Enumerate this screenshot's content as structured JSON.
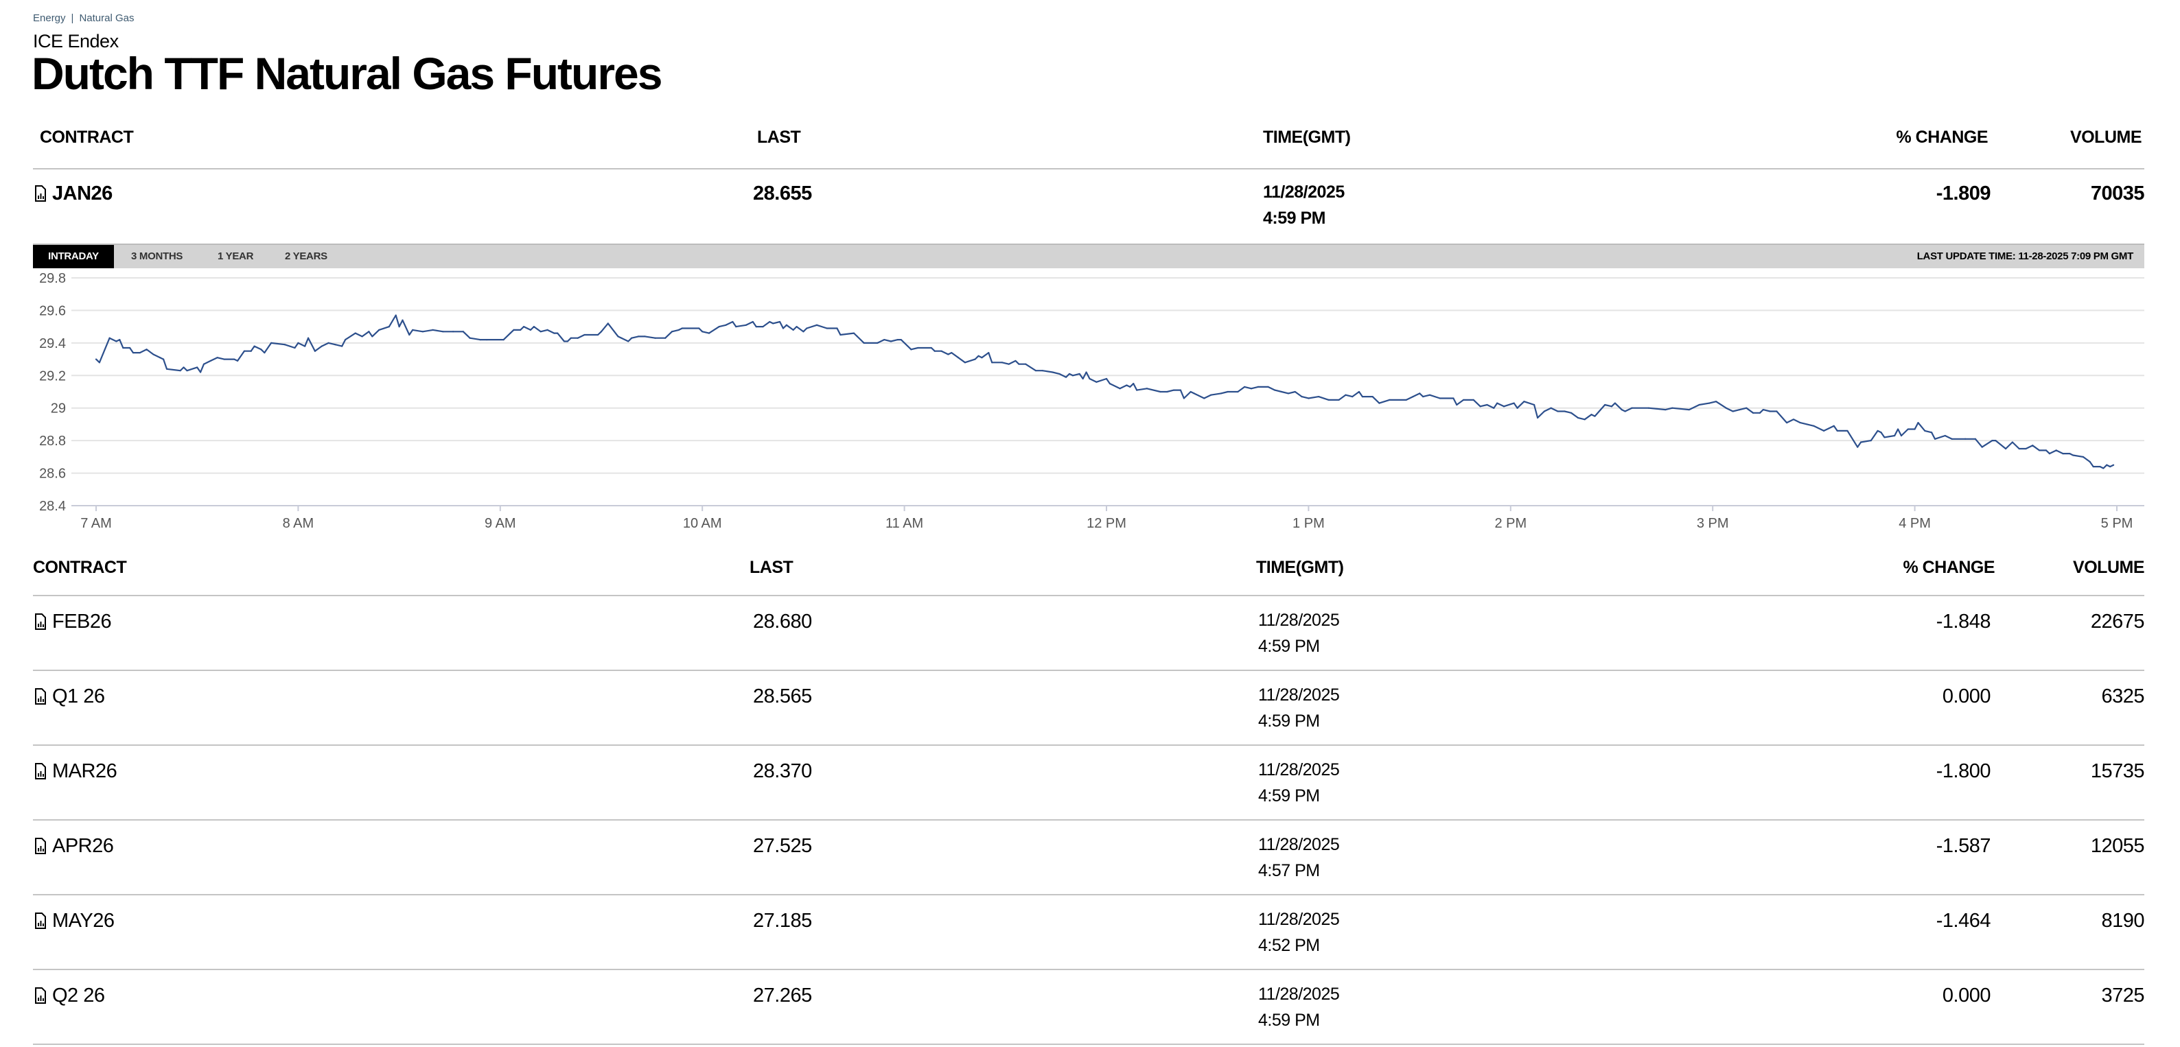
{
  "breadcrumb": [
    "Energy",
    "Natural Gas"
  ],
  "breadcrumb_separator": "|",
  "exchange": "ICE Endex",
  "title": "Dutch TTF Natural Gas Futures",
  "columns": {
    "contract": "CONTRACT",
    "last": "LAST",
    "time": "TIME(GMT)",
    "change": "% CHANGE",
    "volume": "VOLUME"
  },
  "main_contract": {
    "contract": "JAN26",
    "last": "28.655",
    "date": "11/28/2025",
    "time": "4:59 PM",
    "change": "-1.809",
    "volume": "70035",
    "icon": "chart-document-icon"
  },
  "chart_tabs": [
    {
      "label": "INTRADAY",
      "active": true
    },
    {
      "label": "3 MONTHS",
      "active": false
    },
    {
      "label": "1 YEAR",
      "active": false
    },
    {
      "label": "2 YEARS",
      "active": false
    }
  ],
  "last_update": "LAST UPDATE TIME: 11-28-2025 7:09 PM GMT",
  "colors": {
    "line": "#2c4f8c",
    "tabbar": "#d3d3d3",
    "active_tab": "#000000",
    "breadcrumb": "#3e5a70"
  },
  "chart_data": {
    "type": "line",
    "title": "",
    "xlabel": "",
    "ylabel": "",
    "ylim": [
      28.4,
      29.8
    ],
    "xlim": [
      "7:00",
      "17:00"
    ],
    "grid": true,
    "y_ticks": [
      "29.8",
      "29.6",
      "29.4",
      "29.2",
      "29",
      "28.8",
      "28.6",
      "28.4"
    ],
    "x_ticks": [
      "7 AM",
      "8 AM",
      "9 AM",
      "10 AM",
      "11 AM",
      "12 PM",
      "1 PM",
      "2 PM",
      "3 PM",
      "4 PM",
      "5 PM"
    ],
    "points": [
      [
        "7:00",
        29.3
      ],
      [
        "7:01",
        29.28
      ],
      [
        "7:04",
        29.43
      ],
      [
        "7:06",
        29.41
      ],
      [
        "7:07",
        29.42
      ],
      [
        "7:08",
        29.37
      ],
      [
        "7:10",
        29.37
      ],
      [
        "7:11",
        29.34
      ],
      [
        "7:13",
        29.34
      ],
      [
        "7:15",
        29.36
      ],
      [
        "7:17",
        29.33
      ],
      [
        "7:19",
        29.31
      ],
      [
        "7:20",
        29.3
      ],
      [
        "7:21",
        29.24
      ],
      [
        "7:25",
        29.23
      ],
      [
        "7:26",
        29.25
      ],
      [
        "7:27",
        29.23
      ],
      [
        "7:30",
        29.25
      ],
      [
        "7:31",
        29.22
      ],
      [
        "7:32",
        29.27
      ],
      [
        "7:34",
        29.29
      ],
      [
        "7:36",
        29.31
      ],
      [
        "7:38",
        29.3
      ],
      [
        "7:41",
        29.3
      ],
      [
        "7:42",
        29.29
      ],
      [
        "7:44",
        29.35
      ],
      [
        "7:46",
        29.35
      ],
      [
        "7:47",
        29.38
      ],
      [
        "7:49",
        29.36
      ],
      [
        "7:50",
        29.34
      ],
      [
        "7:52",
        29.4
      ],
      [
        "7:56",
        29.39
      ],
      [
        "7:59",
        29.37
      ],
      [
        "8:00",
        29.4
      ],
      [
        "8:02",
        29.38
      ],
      [
        "8:03",
        29.43
      ],
      [
        "8:05",
        29.35
      ],
      [
        "8:07",
        29.38
      ],
      [
        "8:09",
        29.4
      ],
      [
        "8:11",
        29.39
      ],
      [
        "8:13",
        29.38
      ],
      [
        "8:14",
        29.42
      ],
      [
        "8:17",
        29.46
      ],
      [
        "8:19",
        29.44
      ],
      [
        "8:21",
        29.47
      ],
      [
        "8:22",
        29.44
      ],
      [
        "8:24",
        29.48
      ],
      [
        "8:27",
        29.5
      ],
      [
        "8:29",
        29.57
      ],
      [
        "8:30",
        29.5
      ],
      [
        "8:31",
        29.54
      ],
      [
        "8:33",
        29.45
      ],
      [
        "8:34",
        29.48
      ],
      [
        "8:37",
        29.47
      ],
      [
        "8:40",
        29.48
      ],
      [
        "8:43",
        29.47
      ],
      [
        "8:46",
        29.47
      ],
      [
        "8:49",
        29.47
      ],
      [
        "8:51",
        29.43
      ],
      [
        "8:54",
        29.42
      ],
      [
        "8:56",
        29.42
      ],
      [
        "9:01",
        29.42
      ],
      [
        "9:03",
        29.46
      ],
      [
        "9:04",
        29.48
      ],
      [
        "9:06",
        29.48
      ],
      [
        "9:07",
        29.5
      ],
      [
        "9:09",
        29.48
      ],
      [
        "9:10",
        29.5
      ],
      [
        "9:12",
        29.47
      ],
      [
        "9:14",
        29.48
      ],
      [
        "9:16",
        29.46
      ],
      [
        "9:17",
        29.46
      ],
      [
        "9:19",
        29.41
      ],
      [
        "9:20",
        29.41
      ],
      [
        "9:21",
        29.43
      ],
      [
        "9:23",
        29.43
      ],
      [
        "9:25",
        29.45
      ],
      [
        "9:29",
        29.45
      ],
      [
        "9:30",
        29.47
      ],
      [
        "9:32",
        29.52
      ],
      [
        "9:35",
        29.44
      ],
      [
        "9:36",
        29.43
      ],
      [
        "9:38",
        29.41
      ],
      [
        "9:39",
        29.43
      ],
      [
        "9:41",
        29.44
      ],
      [
        "9:43",
        29.44
      ],
      [
        "9:46",
        29.43
      ],
      [
        "9:49",
        29.43
      ],
      [
        "9:51",
        29.47
      ],
      [
        "9:53",
        29.48
      ],
      [
        "9:54",
        29.49
      ],
      [
        "9:59",
        29.49
      ],
      [
        "10:00",
        29.47
      ],
      [
        "10:02",
        29.46
      ],
      [
        "10:05",
        29.5
      ],
      [
        "10:07",
        29.51
      ],
      [
        "10:09",
        29.53
      ],
      [
        "10:10",
        29.5
      ],
      [
        "10:13",
        29.51
      ],
      [
        "10:15",
        29.53
      ],
      [
        "10:16",
        29.5
      ],
      [
        "10:18",
        29.5
      ],
      [
        "10:20",
        29.53
      ],
      [
        "10:21",
        29.52
      ],
      [
        "10:23",
        29.53
      ],
      [
        "10:24",
        29.49
      ],
      [
        "10:25",
        29.51
      ],
      [
        "10:27",
        29.48
      ],
      [
        "10:28",
        29.5
      ],
      [
        "10:30",
        29.47
      ],
      [
        "10:31",
        29.49
      ],
      [
        "10:34",
        29.51
      ],
      [
        "10:37",
        29.49
      ],
      [
        "10:40",
        29.49
      ],
      [
        "10:41",
        29.45
      ],
      [
        "10:45",
        29.46
      ],
      [
        "10:46",
        29.44
      ],
      [
        "10:48",
        29.4
      ],
      [
        "10:52",
        29.4
      ],
      [
        "10:54",
        29.42
      ],
      [
        "10:56",
        29.41
      ],
      [
        "10:58",
        29.42
      ],
      [
        "10:59",
        29.42
      ],
      [
        "11:02",
        29.36
      ],
      [
        "11:04",
        29.37
      ],
      [
        "11:08",
        29.37
      ],
      [
        "11:09",
        29.35
      ],
      [
        "11:11",
        29.35
      ],
      [
        "11:13",
        29.33
      ],
      [
        "11:14",
        29.34
      ],
      [
        "11:16",
        29.31
      ],
      [
        "11:18",
        29.28
      ],
      [
        "11:21",
        29.3
      ],
      [
        "11:22",
        29.32
      ],
      [
        "11:23",
        29.31
      ],
      [
        "11:25",
        29.34
      ],
      [
        "11:26",
        29.28
      ],
      [
        "11:29",
        29.28
      ],
      [
        "11:31",
        29.27
      ],
      [
        "11:33",
        29.29
      ],
      [
        "11:34",
        29.27
      ],
      [
        "11:36",
        29.27
      ],
      [
        "11:39",
        29.23
      ],
      [
        "11:41",
        29.23
      ],
      [
        "11:44",
        29.22
      ],
      [
        "11:46",
        29.21
      ],
      [
        "11:48",
        29.19
      ],
      [
        "11:49",
        29.21
      ],
      [
        "11:50",
        29.2
      ],
      [
        "11:52",
        29.21
      ],
      [
        "11:53",
        29.18
      ],
      [
        "11:54",
        29.22
      ],
      [
        "11:55",
        29.18
      ],
      [
        "11:57",
        29.16
      ],
      [
        "12:00",
        29.18
      ],
      [
        "12:01",
        29.15
      ],
      [
        "12:04",
        29.12
      ],
      [
        "12:06",
        29.14
      ],
      [
        "12:07",
        29.13
      ],
      [
        "12:08",
        29.15
      ],
      [
        "12:09",
        29.11
      ],
      [
        "12:12",
        29.12
      ],
      [
        "12:16",
        29.1
      ],
      [
        "12:18",
        29.1
      ],
      [
        "12:20",
        29.11
      ],
      [
        "12:22",
        29.11
      ],
      [
        "12:23",
        29.06
      ],
      [
        "12:25",
        29.1
      ],
      [
        "12:26",
        29.09
      ],
      [
        "12:29",
        29.06
      ],
      [
        "12:31",
        29.08
      ],
      [
        "12:34",
        29.09
      ],
      [
        "12:36",
        29.1
      ],
      [
        "12:39",
        29.1
      ],
      [
        "12:41",
        29.13
      ],
      [
        "12:43",
        29.12
      ],
      [
        "12:45",
        29.13
      ],
      [
        "12:48",
        29.13
      ],
      [
        "12:50",
        29.11
      ],
      [
        "12:52",
        29.1
      ],
      [
        "12:54",
        29.09
      ],
      [
        "12:56",
        29.1
      ],
      [
        "12:58",
        29.07
      ],
      [
        "13:00",
        29.06
      ],
      [
        "13:03",
        29.07
      ],
      [
        "13:06",
        29.05
      ],
      [
        "13:09",
        29.05
      ],
      [
        "13:11",
        29.08
      ],
      [
        "13:13",
        29.07
      ],
      [
        "13:15",
        29.1
      ],
      [
        "13:16",
        29.07
      ],
      [
        "13:19",
        29.07
      ],
      [
        "13:21",
        29.03
      ],
      [
        "13:24",
        29.05
      ],
      [
        "13:29",
        29.05
      ],
      [
        "13:31",
        29.07
      ],
      [
        "13:33",
        29.09
      ],
      [
        "13:34",
        29.07
      ],
      [
        "13:36",
        29.08
      ],
      [
        "13:39",
        29.06
      ],
      [
        "13:43",
        29.06
      ],
      [
        "13:44",
        29.02
      ],
      [
        "13:46",
        29.05
      ],
      [
        "13:49",
        29.05
      ],
      [
        "13:51",
        29.01
      ],
      [
        "13:53",
        29.02
      ],
      [
        "13:55",
        29.0
      ],
      [
        "13:56",
        29.03
      ],
      [
        "13:58",
        29.01
      ],
      [
        "14:01",
        29.03
      ],
      [
        "14:02",
        29.0
      ],
      [
        "14:04",
        29.04
      ],
      [
        "14:07",
        29.02
      ],
      [
        "14:08",
        28.94
      ],
      [
        "14:10",
        28.98
      ],
      [
        "14:12",
        29.0
      ],
      [
        "14:14",
        28.98
      ],
      [
        "14:16",
        28.98
      ],
      [
        "14:18",
        28.97
      ],
      [
        "14:20",
        28.94
      ],
      [
        "14:22",
        28.93
      ],
      [
        "14:24",
        28.96
      ],
      [
        "14:25",
        28.95
      ],
      [
        "14:28",
        29.02
      ],
      [
        "14:30",
        29.01
      ],
      [
        "14:31",
        29.03
      ],
      [
        "14:33",
        28.99
      ],
      [
        "14:34",
        28.98
      ],
      [
        "14:36",
        29.0
      ],
      [
        "14:41",
        29.0
      ],
      [
        "14:46",
        28.99
      ],
      [
        "14:48",
        29.0
      ],
      [
        "14:53",
        28.99
      ],
      [
        "14:56",
        29.02
      ],
      [
        "14:59",
        29.03
      ],
      [
        "15:01",
        29.04
      ],
      [
        "15:04",
        29.0
      ],
      [
        "15:06",
        28.98
      ],
      [
        "15:08",
        28.99
      ],
      [
        "15:10",
        29.0
      ],
      [
        "15:12",
        28.97
      ],
      [
        "15:14",
        28.97
      ],
      [
        "15:15",
        28.99
      ],
      [
        "15:17",
        28.98
      ],
      [
        "15:19",
        28.98
      ],
      [
        "15:22",
        28.91
      ],
      [
        "15:24",
        28.93
      ],
      [
        "15:26",
        28.91
      ],
      [
        "15:28",
        28.9
      ],
      [
        "15:30",
        28.89
      ],
      [
        "15:33",
        28.86
      ],
      [
        "15:36",
        28.89
      ],
      [
        "15:37",
        28.86
      ],
      [
        "15:40",
        28.86
      ],
      [
        "15:43",
        28.76
      ],
      [
        "15:44",
        28.79
      ],
      [
        "15:47",
        28.8
      ],
      [
        "15:49",
        28.86
      ],
      [
        "15:50",
        28.85
      ],
      [
        "15:51",
        28.82
      ],
      [
        "15:54",
        28.83
      ],
      [
        "15:55",
        28.87
      ],
      [
        "15:56",
        28.83
      ],
      [
        "15:58",
        28.87
      ],
      [
        "16:00",
        28.87
      ],
      [
        "16:01",
        28.91
      ],
      [
        "16:03",
        28.86
      ],
      [
        "16:05",
        28.85
      ],
      [
        "16:06",
        28.81
      ],
      [
        "16:09",
        28.83
      ],
      [
        "16:11",
        28.81
      ],
      [
        "16:15",
        28.81
      ],
      [
        "16:18",
        28.81
      ],
      [
        "16:20",
        28.76
      ],
      [
        "16:23",
        28.8
      ],
      [
        "16:24",
        28.8
      ],
      [
        "16:27",
        28.75
      ],
      [
        "16:29",
        28.79
      ],
      [
        "16:31",
        28.75
      ],
      [
        "16:33",
        28.75
      ],
      [
        "16:35",
        28.77
      ],
      [
        "16:37",
        28.74
      ],
      [
        "16:39",
        28.74
      ],
      [
        "16:40",
        28.72
      ],
      [
        "16:42",
        28.74
      ],
      [
        "16:44",
        28.72
      ],
      [
        "16:46",
        28.72
      ],
      [
        "16:47",
        28.71
      ],
      [
        "16:50",
        28.7
      ],
      [
        "16:52",
        28.67
      ],
      [
        "16:53",
        28.64
      ],
      [
        "16:55",
        28.64
      ],
      [
        "16:56",
        28.63
      ],
      [
        "16:57",
        28.65
      ],
      [
        "16:58",
        28.64
      ],
      [
        "16:59",
        28.65
      ]
    ]
  },
  "contracts": [
    {
      "contract": "FEB26",
      "last": "28.680",
      "date": "11/28/2025",
      "time": "4:59 PM",
      "change": "-1.848",
      "volume": "22675"
    },
    {
      "contract": "Q1 26",
      "last": "28.565",
      "date": "11/28/2025",
      "time": "4:59 PM",
      "change": "0.000",
      "volume": "6325"
    },
    {
      "contract": "MAR26",
      "last": "28.370",
      "date": "11/28/2025",
      "time": "4:59 PM",
      "change": "-1.800",
      "volume": "15735"
    },
    {
      "contract": "APR26",
      "last": "27.525",
      "date": "11/28/2025",
      "time": "4:57 PM",
      "change": "-1.587",
      "volume": "12055"
    },
    {
      "contract": "MAY26",
      "last": "27.185",
      "date": "11/28/2025",
      "time": "4:52 PM",
      "change": "-1.464",
      "volume": "8190"
    },
    {
      "contract": "Q2 26",
      "last": "27.265",
      "date": "11/28/2025",
      "time": "4:59 PM",
      "change": "0.000",
      "volume": "3725"
    }
  ]
}
